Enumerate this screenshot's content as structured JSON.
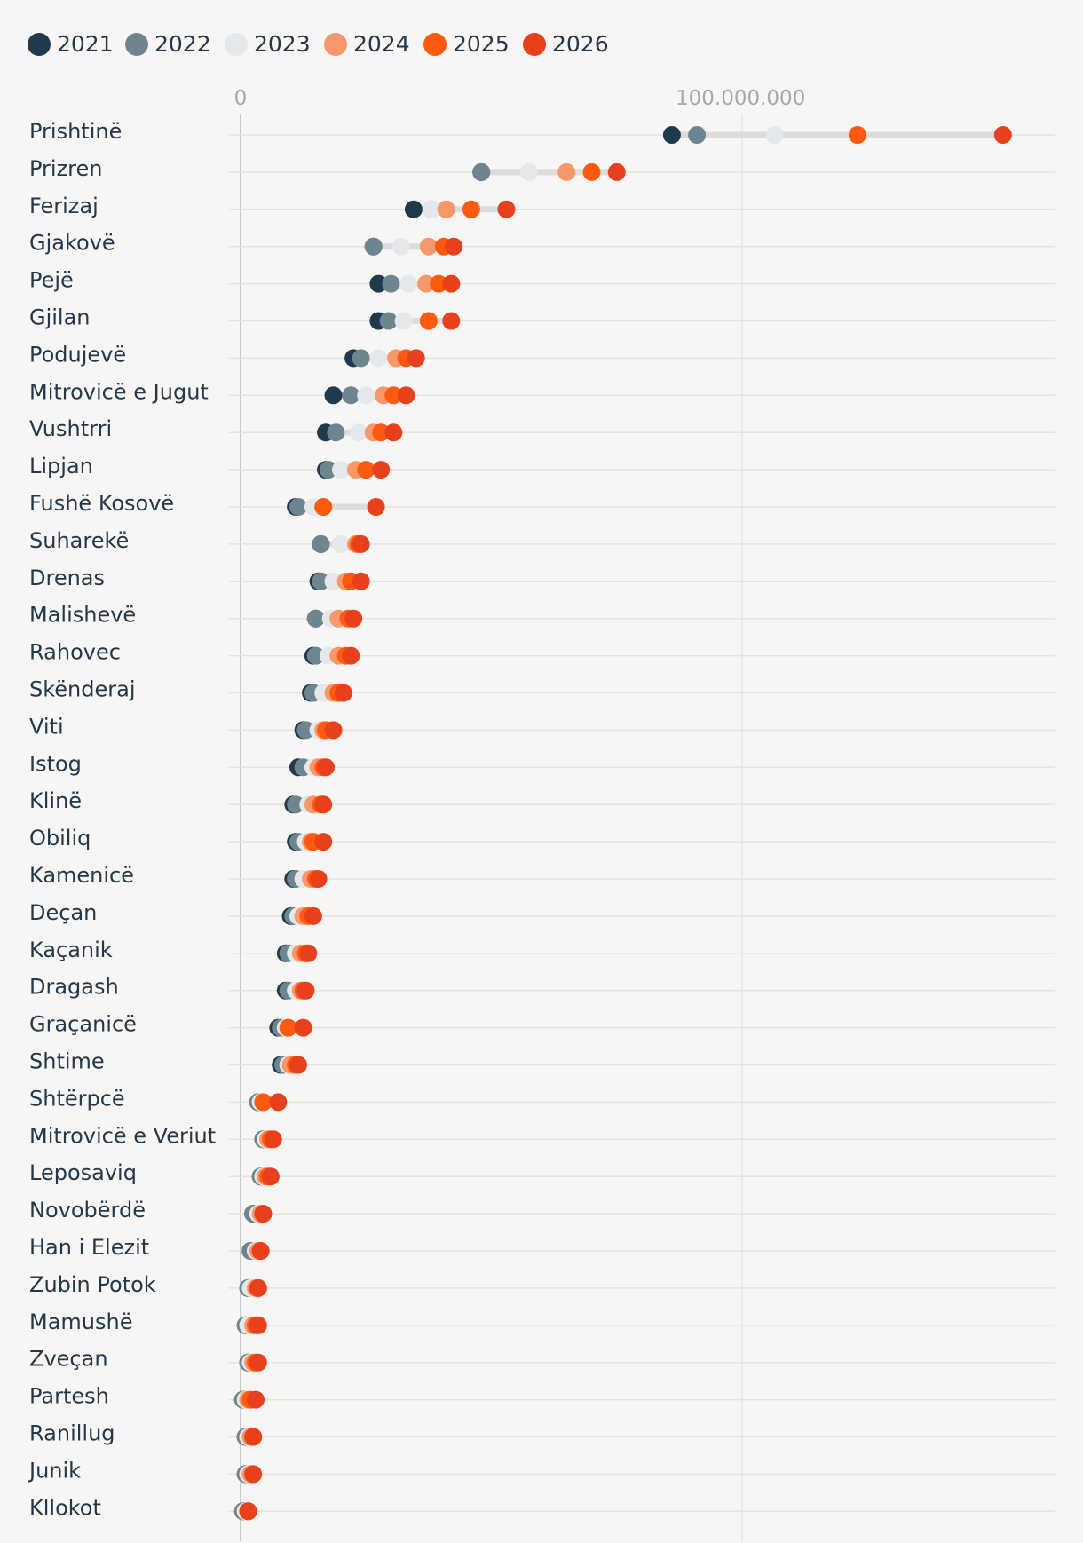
{
  "chart_data": {
    "type": "scatter",
    "title": "",
    "xlabel": "",
    "ylabel": "",
    "xlim": [
      0,
      160000000
    ],
    "x_ticks": [
      {
        "value": 0,
        "label": "0"
      },
      {
        "value": 100000000,
        "label": "100.000.000"
      }
    ],
    "legend": {
      "placement": "top-left"
    },
    "grid": true,
    "series": [
      {
        "name": "2021",
        "color": "#1e3a4c"
      },
      {
        "name": "2022",
        "color": "#6e8590"
      },
      {
        "name": "2023",
        "color": "#e4e8ea"
      },
      {
        "name": "2024",
        "color": "#f7976a"
      },
      {
        "name": "2025",
        "color": "#ff5a0f"
      },
      {
        "name": "2026",
        "color": "#e8401c"
      }
    ],
    "categories": [
      "Prishtinë",
      "Prizren",
      "Ferizaj",
      "Gjakovë",
      "Pejë",
      "Gjilan",
      "Podujevë",
      "Mitrovicë e Jugut",
      "Vushtrri",
      "Lipjan",
      "Fushë Kosovë",
      "Suharekë",
      "Drenas",
      "Malishevë",
      "Rahovec",
      "Skënderaj",
      "Viti",
      "Istog",
      "Klinë",
      "Obiliq",
      "Kamenicë",
      "Deçan",
      "Kaçanik",
      "Dragash",
      "Graçanicë",
      "Shtime",
      "Shtërpcë",
      "Mitrovicë e Veriut",
      "Leposaviq",
      "Novobërdë",
      "Han i Elezit",
      "Zubin Potok",
      "Mamushë",
      "Zveçan",
      "Partesh",
      "Ranillug",
      "Junik",
      "Kllokot"
    ],
    "values": [
      [
        86000000,
        91000000,
        106500000,
        123000000,
        123000000,
        152000000
      ],
      [
        48000000,
        48000000,
        57500000,
        65000000,
        70000000,
        75000000
      ],
      [
        34500000,
        38000000,
        38000000,
        41000000,
        46000000,
        53000000
      ],
      [
        26500000,
        26500000,
        32000000,
        37500000,
        40500000,
        42500000
      ],
      [
        27500000,
        30000000,
        33500000,
        37000000,
        39500000,
        42000000
      ],
      [
        27500000,
        29500000,
        32500000,
        37500000,
        37500000,
        42000000
      ],
      [
        22500000,
        24000000,
        27500000,
        31000000,
        33000000,
        35000000
      ],
      [
        18500000,
        22000000,
        25000000,
        28500000,
        30500000,
        33000000
      ],
      [
        17000000,
        19000000,
        23500000,
        26500000,
        28000000,
        30500000
      ],
      [
        17000000,
        17500000,
        20000000,
        23000000,
        25000000,
        28000000
      ],
      [
        11000000,
        11500000,
        14500000,
        16500000,
        16500000,
        27000000
      ],
      [
        16000000,
        16000000,
        20000000,
        23000000,
        23500000,
        24000000
      ],
      [
        15500000,
        16000000,
        18500000,
        21000000,
        22000000,
        24000000
      ],
      [
        15000000,
        15000000,
        18000000,
        19500000,
        21500000,
        22500000
      ],
      [
        14500000,
        15000000,
        17500000,
        19500000,
        21000000,
        22000000
      ],
      [
        14000000,
        14500000,
        16500000,
        18500000,
        19500000,
        20500000
      ],
      [
        12500000,
        13000000,
        15500000,
        16500000,
        17000000,
        18500000
      ],
      [
        11500000,
        12500000,
        14500000,
        15500000,
        16500000,
        17000000
      ],
      [
        10500000,
        11000000,
        13500000,
        14500000,
        16000000,
        16500000
      ],
      [
        11000000,
        11500000,
        13000000,
        14000000,
        14500000,
        16500000
      ],
      [
        10500000,
        11000000,
        12500000,
        14000000,
        15000000,
        15500000
      ],
      [
        10000000,
        10500000,
        11500000,
        12500000,
        13500000,
        14500000
      ],
      [
        9000000,
        9500000,
        11000000,
        12000000,
        13000000,
        13500000
      ],
      [
        9000000,
        9500000,
        11000000,
        12000000,
        12500000,
        13000000
      ],
      [
        7500000,
        8000000,
        9000000,
        9500000,
        9500000,
        12500000
      ],
      [
        8000000,
        8500000,
        9500000,
        10000000,
        11000000,
        11500000
      ],
      [
        3500000,
        3500000,
        4000000,
        4500000,
        4500000,
        7500000
      ],
      [
        4500000,
        4500000,
        5000000,
        5500000,
        6000000,
        6500000
      ],
      [
        4000000,
        4000000,
        4500000,
        5000000,
        5500000,
        6000000
      ],
      [
        2500000,
        2500000,
        3500000,
        4000000,
        4500000,
        4500000
      ],
      [
        2000000,
        2000000,
        3000000,
        3500000,
        4000000,
        4000000
      ],
      [
        1500000,
        1500000,
        2000000,
        3000000,
        3500000,
        3500000
      ],
      [
        1000000,
        1000000,
        1500000,
        2500000,
        3000000,
        3500000
      ],
      [
        1500000,
        1500000,
        2000000,
        2500000,
        3000000,
        3500000
      ],
      [
        500000,
        500000,
        1000000,
        1500000,
        2000000,
        3000000
      ],
      [
        1000000,
        1000000,
        1500000,
        2000000,
        2500000,
        2500000
      ],
      [
        1000000,
        1000000,
        1500000,
        2000000,
        2500000,
        2500000
      ],
      [
        500000,
        500000,
        1000000,
        1500000,
        1500000,
        1500000
      ]
    ]
  }
}
